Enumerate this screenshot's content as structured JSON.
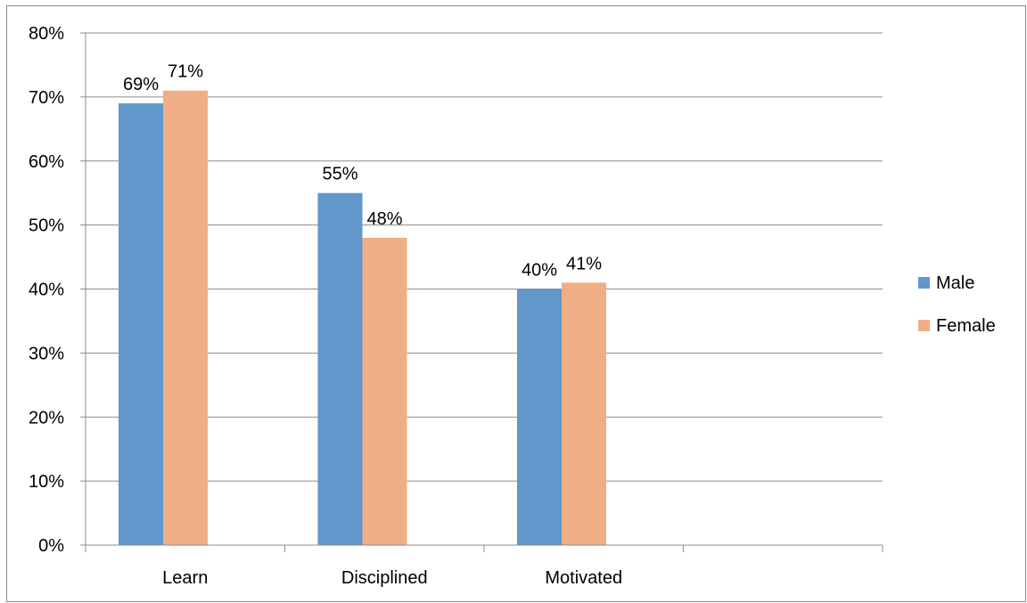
{
  "chart_data": {
    "type": "bar",
    "title": "",
    "xlabel": "",
    "ylabel": "",
    "categories": [
      "Learn",
      "Disciplined",
      "Motivated",
      ""
    ],
    "series": [
      {
        "name": "Male",
        "values": [
          0.69,
          0.55,
          0.4,
          null
        ],
        "labels": [
          "69%",
          "55%",
          "40%",
          ""
        ],
        "color": "#6197cb"
      },
      {
        "name": "Female",
        "values": [
          0.71,
          0.48,
          0.41,
          null
        ],
        "labels": [
          "71%",
          "48%",
          "41%",
          ""
        ],
        "color": "#efae85"
      }
    ],
    "ylim": [
      0,
      0.8
    ],
    "yticks": [
      "0%",
      "10%",
      "20%",
      "30%",
      "40%",
      "50%",
      "60%",
      "70%",
      "80%"
    ],
    "grid": true,
    "legend_position": "right",
    "gridline_color": "#8c8c8c"
  }
}
